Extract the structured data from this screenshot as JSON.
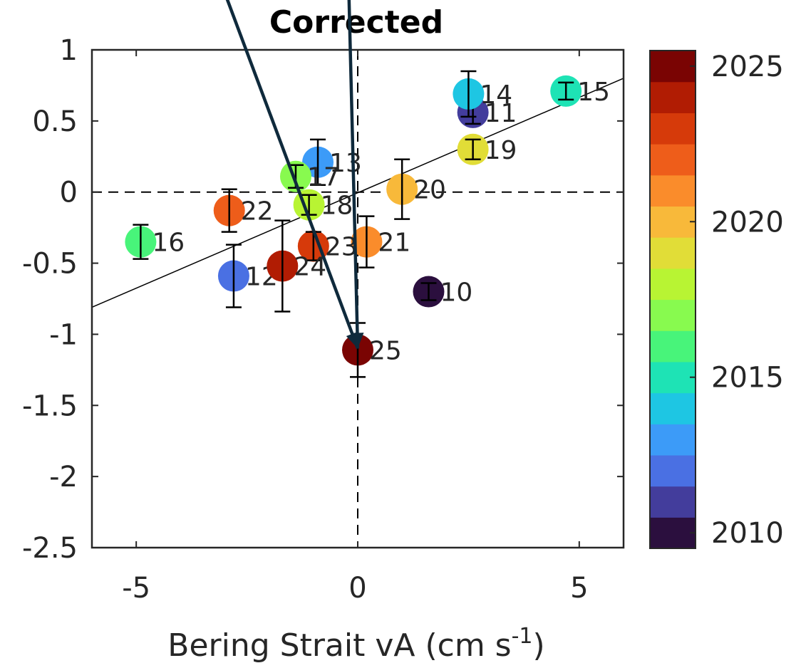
{
  "chart_data": {
    "type": "scatter",
    "title": "Corrected",
    "xlabel": "Bering Strait vA (cm s",
    "xlabel_sup": "-1",
    "xlabel_end": ")",
    "ylabel": "",
    "xlim": [
      -6,
      6
    ],
    "ylim": [
      -2.5,
      1
    ],
    "xticks": [
      -5,
      0,
      5
    ],
    "xtick_labels": [
      "-5",
      "0",
      "5"
    ],
    "yticks": [
      1,
      0.5,
      0,
      -0.5,
      -1,
      -1.5,
      -2,
      -2.5
    ],
    "ytick_labels": [
      "1",
      "0.5",
      "0",
      "-0.5",
      "-1",
      "-1.5",
      "-2",
      "-2.5"
    ],
    "grid": false,
    "reference_lines": {
      "x": 0,
      "y": 0,
      "style": "dashed"
    },
    "fit_line": {
      "x": [
        -6,
        6
      ],
      "y": [
        -0.81,
        0.8
      ]
    },
    "arrows": [
      {
        "from": [
          -3.0,
          1.4
        ],
        "to": [
          0,
          -1.1
        ]
      },
      {
        "from": [
          -0.2,
          1.4
        ],
        "to": [
          0,
          -1.1
        ]
      }
    ],
    "points": [
      {
        "label": "10",
        "year": 2010,
        "x": 1.6,
        "y": -0.7,
        "err": 0.06
      },
      {
        "label": "11",
        "year": 2011,
        "x": 2.6,
        "y": 0.56,
        "err": 0.08
      },
      {
        "label": "12",
        "year": 2012,
        "x": -2.8,
        "y": -0.59,
        "err": 0.22
      },
      {
        "label": "13",
        "year": 2013,
        "x": -0.9,
        "y": 0.21,
        "err": 0.16
      },
      {
        "label": "14",
        "year": 2014,
        "x": 2.5,
        "y": 0.69,
        "err": 0.16
      },
      {
        "label": "15",
        "year": 2015,
        "x": 4.7,
        "y": 0.71,
        "err": 0.06
      },
      {
        "label": "16",
        "year": 2016,
        "x": -4.9,
        "y": -0.35,
        "err": 0.12
      },
      {
        "label": "17",
        "year": 2017,
        "x": -1.4,
        "y": 0.11,
        "err": 0.08
      },
      {
        "label": "18",
        "year": 2018,
        "x": -1.1,
        "y": -0.09,
        "err": 0.07
      },
      {
        "label": "19",
        "year": 2019,
        "x": 2.6,
        "y": 0.3,
        "err": 0.07
      },
      {
        "label": "20",
        "year": 2020,
        "x": 1.0,
        "y": 0.02,
        "err": 0.21
      },
      {
        "label": "21",
        "year": 2021,
        "x": 0.2,
        "y": -0.35,
        "err": 0.18
      },
      {
        "label": "22",
        "year": 2022,
        "x": -2.9,
        "y": -0.13,
        "err": 0.15
      },
      {
        "label": "23",
        "year": 2023,
        "x": -1.0,
        "y": -0.38,
        "err": 0.1
      },
      {
        "label": "24",
        "year": 2024,
        "x": -1.7,
        "y": -0.52,
        "err": 0.32
      },
      {
        "label": "25",
        "year": 2025,
        "x": 0.0,
        "y": -1.11,
        "err": 0.19
      }
    ],
    "colorbar": {
      "min": 2009.5,
      "max": 2025.5,
      "tick_values": [
        2025,
        2020,
        2015,
        2010
      ],
      "tick_labels": [
        "2025",
        "2020",
        "2015",
        "2010"
      ],
      "colors": [
        "#2b0f3e",
        "#433d9c",
        "#4a70e3",
        "#3c9bf8",
        "#1ec6e3",
        "#1ee3b5",
        "#48f47a",
        "#88fa4f",
        "#b8f433",
        "#e1dd37",
        "#f8b93a",
        "#fa8c2b",
        "#ee5d1a",
        "#d63a0a",
        "#b11c03",
        "#7a0403"
      ]
    }
  }
}
